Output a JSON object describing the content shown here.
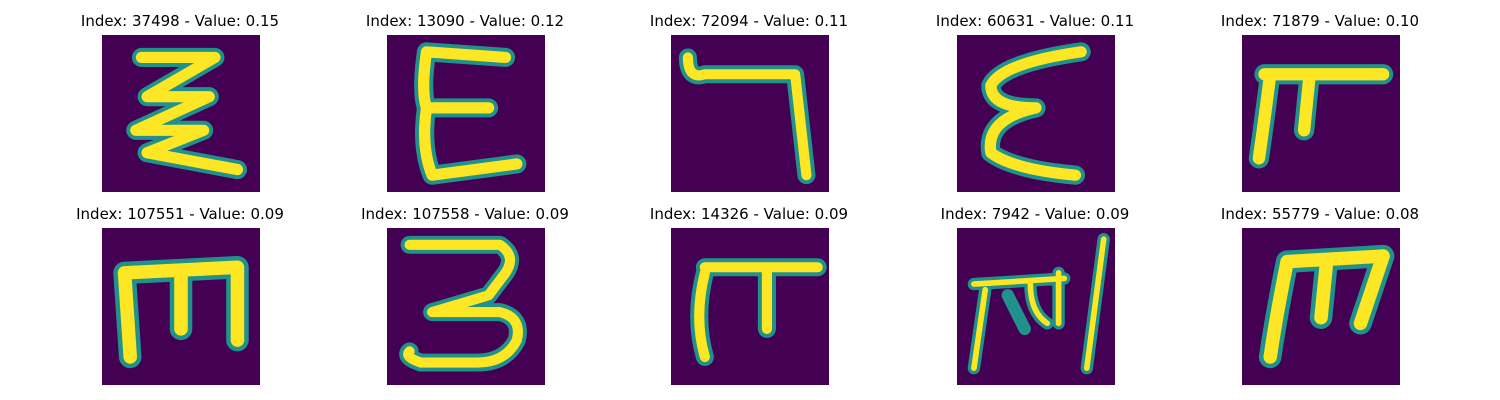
{
  "colors": {
    "background": "#440154",
    "stroke_core": "#fde725",
    "stroke_mid": "#b5de2b",
    "stroke_edge": "#21918c",
    "stroke_faint": "#3b528b"
  },
  "panels": [
    {
      "index": "37498",
      "value": "0.15",
      "title": "Index: 37498 - Value: 0.15",
      "glyph": "zigzag-three-stroke"
    },
    {
      "index": "13090",
      "value": "0.12",
      "title": "Index: 13090 - Value: 0.12",
      "glyph": "E-shape"
    },
    {
      "index": "72094",
      "value": "0.11",
      "title": "Index: 72094 - Value: 0.11",
      "glyph": "hooked-seven"
    },
    {
      "index": "60631",
      "value": "0.11",
      "title": "Index: 60631 - Value: 0.11",
      "glyph": "epsilon-shape"
    },
    {
      "index": "71879",
      "value": "0.10",
      "title": "Index: 71879 - Value: 0.10",
      "glyph": "pi-shape"
    },
    {
      "index": "107551",
      "value": "0.09",
      "title": "Index: 107551 - Value: 0.09",
      "glyph": "rotated-m-shape"
    },
    {
      "index": "107558",
      "value": "0.09",
      "title": "Index: 107558 - Value: 0.09",
      "glyph": "three-shape"
    },
    {
      "index": "14326",
      "value": "0.09",
      "title": "Index: 14326 - Value: 0.09",
      "glyph": "pi-shape"
    },
    {
      "index": "7942",
      "value": "0.09",
      "title": "Index: 7942 - Value: 0.09",
      "glyph": "script-with-bar"
    },
    {
      "index": "55779",
      "value": "0.08",
      "title": "Index: 55779 - Value: 0.08",
      "glyph": "m-shape"
    }
  ]
}
